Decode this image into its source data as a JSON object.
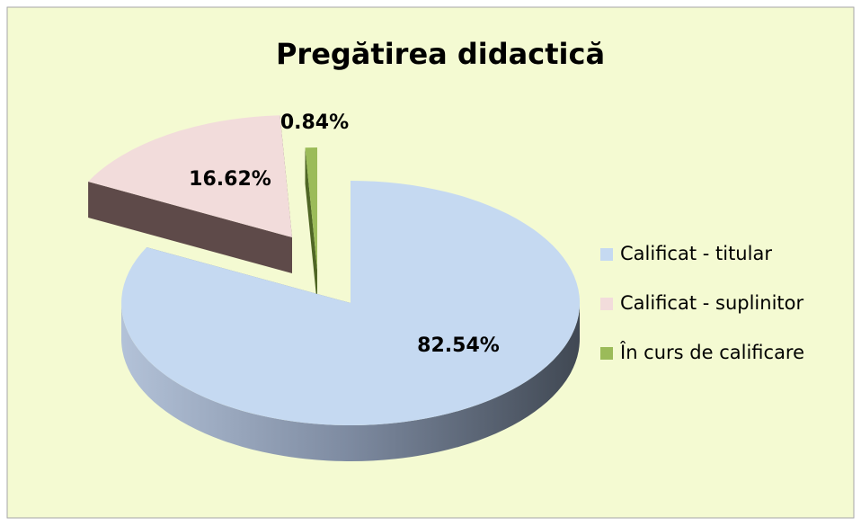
{
  "chart_data": {
    "type": "pie3d",
    "title": "Pregătirea didactică",
    "categories": [
      "Calificat - titular",
      "Calificat - suplinitor",
      "În curs de calificare"
    ],
    "values": [
      82.54,
      16.62,
      0.84
    ],
    "value_labels": [
      "82.54%",
      "16.62%",
      "0.84%"
    ],
    "colors": [
      "#c5d9f1",
      "#f2dcdb",
      "#9bbb59"
    ],
    "legend": "right"
  }
}
